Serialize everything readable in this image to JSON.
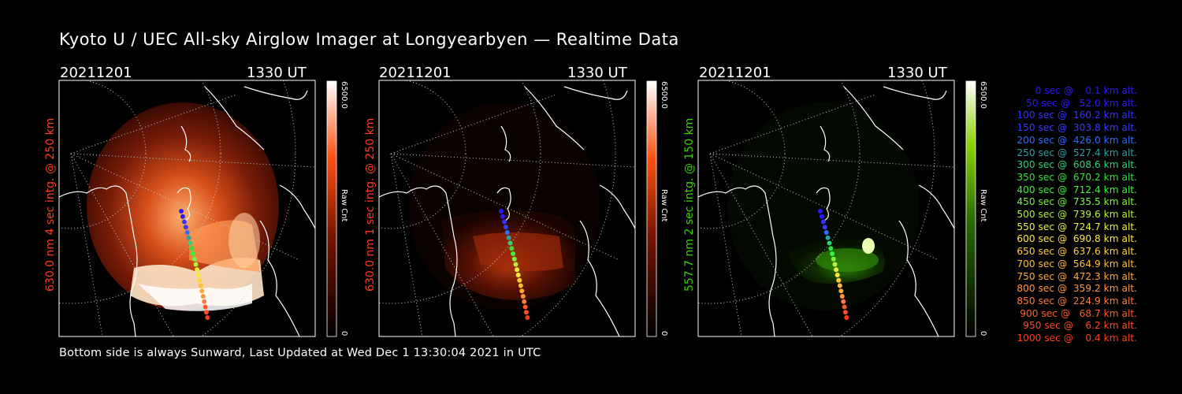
{
  "title": "Kyoto U / UEC All-sky Airglow Imager at Longyearbyen — Realtime Data",
  "footer": "Bottom side is always Sunward, Last Updated at Wed Dec  1 13:30:04 2021 in UTC",
  "panels": [
    {
      "date": "20211201",
      "time": "1330 UT",
      "label": "630.0 nm 4 sec intg. @ 250 km",
      "label_color": "#ff3a1a",
      "cb_max": "6500.0",
      "cb_mid": "Raw Cnt",
      "cb_min": "0",
      "scheme": "red"
    },
    {
      "date": "20211201",
      "time": "1330 UT",
      "label": "630.0 nm 1 sec intg. @ 250 km",
      "label_color": "#ff3a1a",
      "cb_max": "6500.0",
      "cb_mid": "Raw Cnt",
      "cb_min": "0",
      "scheme": "red"
    },
    {
      "date": "20211201",
      "time": "1330 UT",
      "label": "557.7 nm 2 sec intg. @ 150 km",
      "label_color": "#3cd000",
      "cb_max": "6500.0",
      "cb_mid": "Raw Cnt",
      "cb_min": "0",
      "scheme": "green"
    }
  ],
  "legend": [
    {
      "text": "   0 sec @    0.1 km alt.",
      "color": "#2a1aff"
    },
    {
      "text": "  50 sec @   52.0 km alt.",
      "color": "#2a1aff"
    },
    {
      "text": " 100 sec @  160.2 km alt.",
      "color": "#3333ff"
    },
    {
      "text": " 150 sec @  303.8 km alt.",
      "color": "#3a3aff"
    },
    {
      "text": " 200 sec @  426.0 km alt.",
      "color": "#2f6bff"
    },
    {
      "text": " 250 sec @  527.4 km alt.",
      "color": "#2aa0a0"
    },
    {
      "text": " 300 sec @  608.6 km alt.",
      "color": "#2fd27a"
    },
    {
      "text": " 350 sec @  670.2 km alt.",
      "color": "#33e03a"
    },
    {
      "text": " 400 sec @  712.4 km alt.",
      "color": "#3cf23a"
    },
    {
      "text": " 450 sec @  735.5 km alt.",
      "color": "#7bf23a"
    },
    {
      "text": " 500 sec @  739.6 km alt.",
      "color": "#b8f23a"
    },
    {
      "text": " 550 sec @  724.7 km alt.",
      "color": "#e8f23a"
    },
    {
      "text": " 600 sec @  690.8 km alt.",
      "color": "#ffe83a"
    },
    {
      "text": " 650 sec @  637.6 km alt.",
      "color": "#ffd23a"
    },
    {
      "text": " 700 sec @  564.9 km alt.",
      "color": "#ffbe3a"
    },
    {
      "text": " 750 sec @  472.3 km alt.",
      "color": "#ffaa3a"
    },
    {
      "text": " 800 sec @  359.2 km alt.",
      "color": "#ff953a"
    },
    {
      "text": " 850 sec @  224.9 km alt.",
      "color": "#ff7a3a"
    },
    {
      "text": " 900 sec @   68.7 km alt.",
      "color": "#ff5a2a"
    },
    {
      "text": " 950 sec @    6.2 km alt.",
      "color": "#ff4a2a"
    },
    {
      "text": "1000 sec @    0.4 km alt.",
      "color": "#ff3a1a"
    }
  ]
}
